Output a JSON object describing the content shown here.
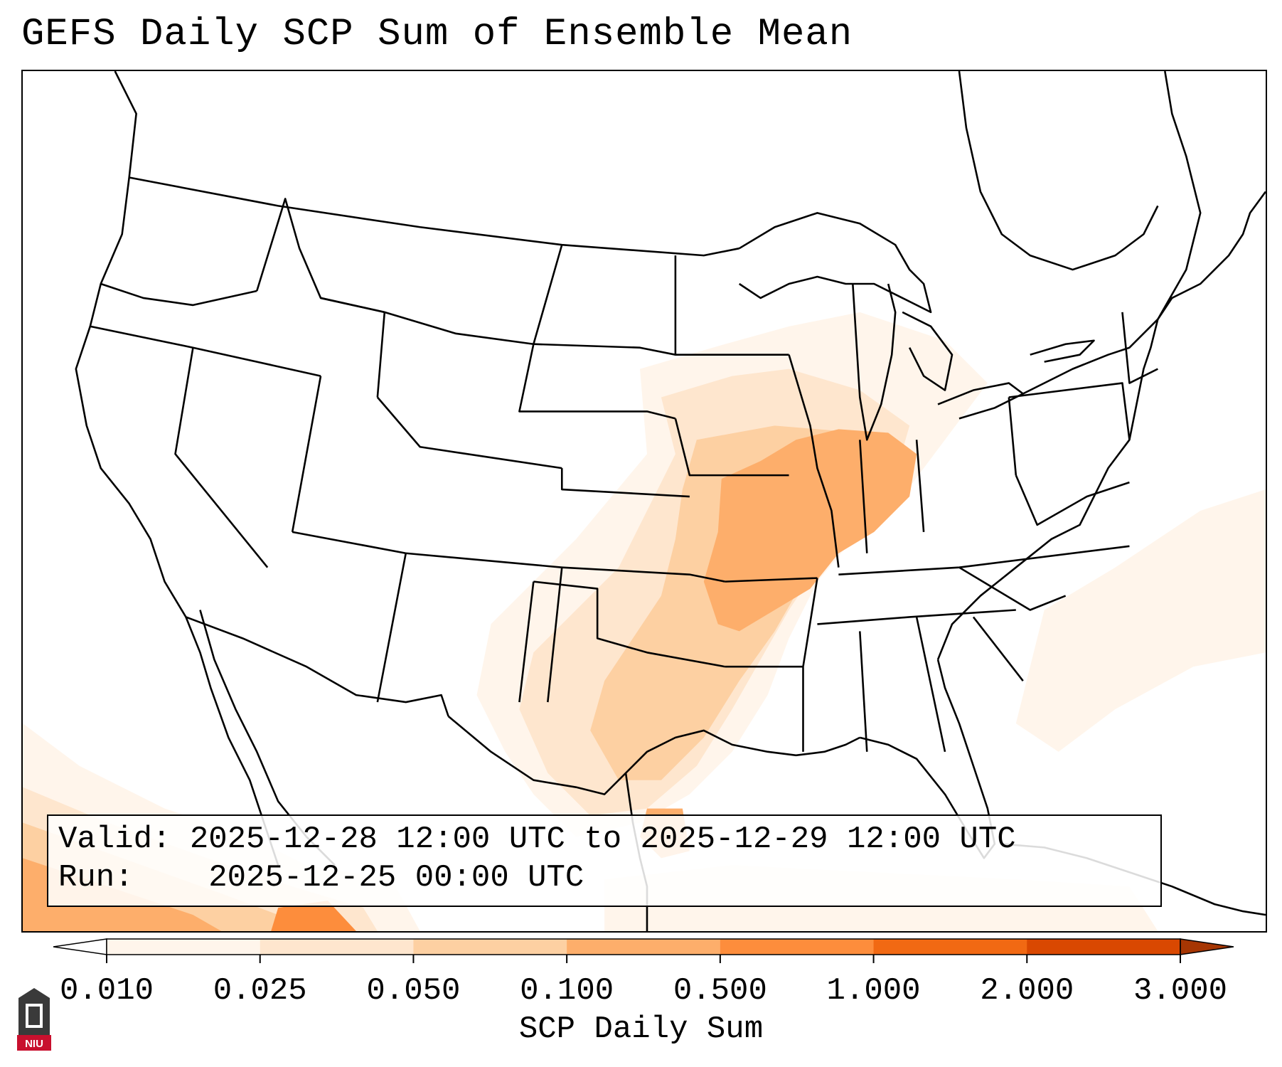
{
  "title": "GEFS Daily SCP Sum of Ensemble Mean",
  "info": {
    "valid_label": "Valid:",
    "valid_value": "2025-12-28 12:00 UTC to 2025-12-29 12:00 UTC",
    "run_label": "Run:",
    "run_value": "2025-12-25 00:00 UTC"
  },
  "colorbar": {
    "label": "SCP Daily Sum",
    "ticks": [
      "0.010",
      "0.025",
      "0.050",
      "0.100",
      "0.500",
      "1.000",
      "2.000",
      "3.000"
    ],
    "colors": [
      "#fff5eb",
      "#fee6ce",
      "#fdd0a2",
      "#fdae6b",
      "#fd8d3c",
      "#f16913",
      "#d94801",
      "#a63603"
    ],
    "extend": "both"
  },
  "logo": {
    "text": "NIU"
  },
  "map": {
    "projection": "Lambert Conformal",
    "region": "CONUS",
    "field": "SCP Daily Sum",
    "max_region": "Missouri, Arkansas, Illinois, Indiana"
  }
}
